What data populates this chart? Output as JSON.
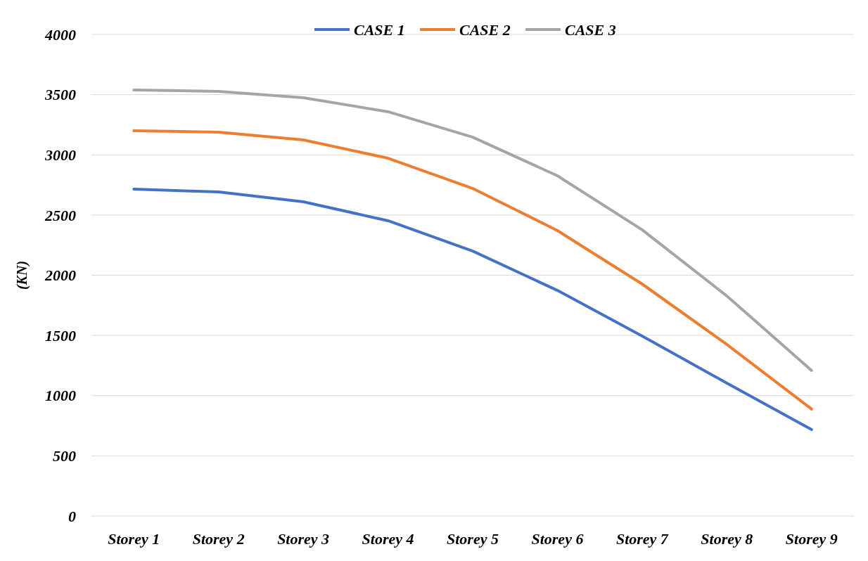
{
  "chart_data": {
    "type": "line",
    "ylabel": "(KN)",
    "categories": [
      "Storey 1",
      "Storey 2",
      "Storey 3",
      "Storey 4",
      "Storey 5",
      "Storey 6",
      "Storey 7",
      "Storey 8",
      "Storey 9"
    ],
    "series": [
      {
        "name": "CASE 1",
        "color": "#4472c4",
        "values": [
          2715,
          2692,
          2610,
          2453,
          2201,
          1874,
          1495,
          1104,
          718
        ]
      },
      {
        "name": "CASE 2",
        "color": "#ed7d31",
        "values": [
          3200,
          3188,
          3124,
          2972,
          2721,
          2371,
          1927,
          1425,
          888
        ]
      },
      {
        "name": "CASE 3",
        "color": "#a5a5a5",
        "values": [
          3539,
          3527,
          3474,
          3358,
          3147,
          2826,
          2377,
          1828,
          1209
        ]
      }
    ],
    "ylim": [
      0,
      4000
    ],
    "yticks": [
      0,
      500,
      1000,
      1500,
      2000,
      2500,
      3000,
      3500,
      4000
    ],
    "grid": "y",
    "legend": "top",
    "marker": "none",
    "line_style": "solid"
  }
}
